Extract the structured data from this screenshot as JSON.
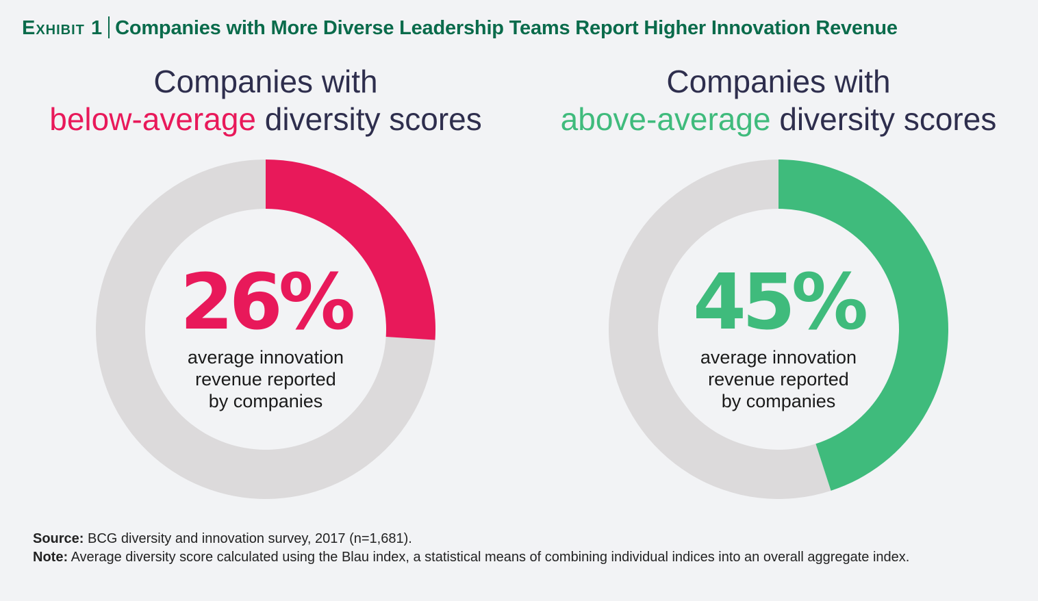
{
  "header": {
    "exhibit": "Exhibit 1",
    "title": "Companies with More Diverse Leadership Teams Report Higher Innovation Revenue"
  },
  "chart_data": [
    {
      "type": "pie",
      "variant": "donut",
      "heading_pre": "Companies with",
      "heading_highlight": "below-average",
      "heading_post": "diversity scores",
      "value": 26,
      "value_label": "26%",
      "description": [
        "average innovation",
        "revenue reported",
        "by companies"
      ],
      "color": "#e8195a",
      "remainder_color": "#dcdadb"
    },
    {
      "type": "pie",
      "variant": "donut",
      "heading_pre": "Companies with",
      "heading_highlight": "above-average",
      "heading_post": "diversity scores",
      "value": 45,
      "value_label": "45%",
      "description": [
        "average innovation",
        "revenue reported",
        "by companies"
      ],
      "color": "#3fbb7c",
      "remainder_color": "#dcdadb"
    }
  ],
  "footer": {
    "source_label": "Source:",
    "source_text": " BCG diversity and innovation survey, 2017 (n=1,681).",
    "note_label": "Note:",
    "note_text": " Average diversity score calculated using the Blau index, a statistical means of combining individual indices into an overall aggregate index."
  }
}
